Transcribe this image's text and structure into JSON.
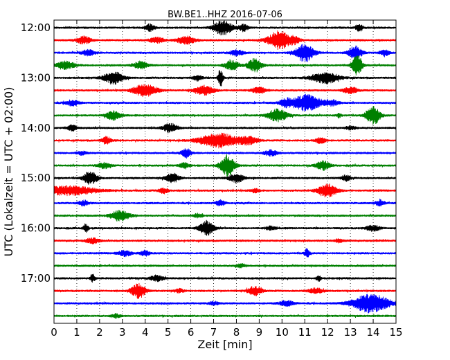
{
  "chart_data": {
    "type": "line",
    "title": "BW.BE1..HHZ 2016-07-06",
    "xlabel": "Zeit  [min]",
    "ylabel": "UTC (Lokalzeit = UTC + 02:00)",
    "xlim": [
      0,
      15
    ],
    "xticks": [
      "0",
      "1",
      "2",
      "3",
      "4",
      "5",
      "6",
      "7",
      "8",
      "9",
      "10",
      "11",
      "12",
      "13",
      "14",
      "15"
    ],
    "y_tick_labels": [
      "12:00",
      "13:00",
      "14:00",
      "15:00",
      "16:00",
      "17:00"
    ],
    "grid": "vertical dotted",
    "series_colors": [
      "#000000",
      "#ff0000",
      "#0000ff",
      "#008000"
    ],
    "traces": [
      {
        "start": "12:00",
        "color": "#000000",
        "bursts": [
          [
            7.4,
            0.8,
            0.4
          ],
          [
            4.2,
            0.4,
            0.2
          ],
          [
            8.3,
            0.4,
            0.2
          ],
          [
            13.4,
            0.4,
            0.15
          ]
        ]
      },
      {
        "start": "12:15",
        "color": "#ff0000",
        "bursts": [
          [
            9.9,
            1.0,
            0.5
          ],
          [
            1.3,
            0.4,
            0.3
          ],
          [
            5.8,
            0.4,
            0.4
          ],
          [
            4.5,
            0.3,
            0.3
          ],
          [
            10.6,
            0.3,
            0.2
          ]
        ]
      },
      {
        "start": "12:30",
        "color": "#0000ff",
        "bursts": [
          [
            11.0,
            1.0,
            0.4
          ],
          [
            13.2,
            0.7,
            0.3
          ],
          [
            14.5,
            0.3,
            0.2
          ],
          [
            1.5,
            0.3,
            0.3
          ],
          [
            8.0,
            0.3,
            0.3
          ]
        ]
      },
      {
        "start": "12:45",
        "color": "#008000",
        "bursts": [
          [
            13.3,
            1.2,
            0.2
          ],
          [
            8.8,
            0.7,
            0.3
          ],
          [
            7.8,
            0.5,
            0.3
          ],
          [
            0.5,
            0.4,
            0.4
          ],
          [
            3.8,
            0.4,
            0.3
          ]
        ]
      },
      {
        "start": "13:00",
        "color": "#000000",
        "bursts": [
          [
            2.6,
            0.7,
            0.4
          ],
          [
            7.3,
            1.0,
            0.1
          ],
          [
            11.9,
            0.6,
            0.6
          ],
          [
            6.3,
            0.3,
            0.2
          ]
        ]
      },
      {
        "start": "13:15",
        "color": "#ff0000",
        "bursts": [
          [
            4.0,
            0.7,
            0.5
          ],
          [
            6.6,
            0.5,
            0.4
          ],
          [
            13.0,
            0.4,
            0.3
          ],
          [
            9.0,
            0.3,
            0.3
          ]
        ]
      },
      {
        "start": "13:30",
        "color": "#0000ff",
        "bursts": [
          [
            11.1,
            0.9,
            0.6
          ],
          [
            10.2,
            0.4,
            0.3
          ],
          [
            12.2,
            0.3,
            0.3
          ],
          [
            0.8,
            0.3,
            0.3
          ]
        ]
      },
      {
        "start": "13:45",
        "color": "#008000",
        "bursts": [
          [
            14.0,
            1.0,
            0.3
          ],
          [
            9.8,
            0.7,
            0.4
          ],
          [
            2.6,
            0.5,
            0.3
          ],
          [
            12.5,
            0.2,
            0.1
          ]
        ]
      },
      {
        "start": "14:00",
        "color": "#000000",
        "bursts": [
          [
            5.1,
            0.5,
            0.3
          ],
          [
            0.8,
            0.3,
            0.2
          ],
          [
            13.0,
            0.2,
            0.2
          ]
        ]
      },
      {
        "start": "14:15",
        "color": "#ff0000",
        "bursts": [
          [
            7.2,
            0.8,
            0.8
          ],
          [
            8.5,
            0.4,
            0.4
          ],
          [
            2.3,
            0.4,
            0.2
          ],
          [
            11.7,
            0.3,
            0.2
          ]
        ]
      },
      {
        "start": "14:30",
        "color": "#0000ff",
        "bursts": [
          [
            5.8,
            0.5,
            0.2
          ],
          [
            9.5,
            0.3,
            0.3
          ],
          [
            1.2,
            0.2,
            0.2
          ]
        ]
      },
      {
        "start": "14:45",
        "color": "#008000",
        "bursts": [
          [
            7.6,
            1.2,
            0.3
          ],
          [
            11.8,
            0.5,
            0.3
          ],
          [
            5.7,
            0.3,
            0.2
          ],
          [
            2.2,
            0.3,
            0.3
          ]
        ]
      },
      {
        "start": "15:00",
        "color": "#000000",
        "bursts": [
          [
            1.6,
            0.7,
            0.3
          ],
          [
            5.2,
            0.5,
            0.3
          ],
          [
            8.0,
            0.5,
            0.3
          ],
          [
            12.8,
            0.3,
            0.2
          ]
        ]
      },
      {
        "start": "15:15",
        "color": "#ff0000",
        "bursts": [
          [
            0.6,
            0.5,
            1.2
          ],
          [
            12.0,
            0.7,
            0.4
          ],
          [
            4.8,
            0.3,
            0.2
          ],
          [
            8.8,
            0.2,
            0.2
          ]
        ]
      },
      {
        "start": "15:30",
        "color": "#0000ff",
        "bursts": [
          [
            1.3,
            0.3,
            0.2
          ],
          [
            7.3,
            0.3,
            0.2
          ],
          [
            14.3,
            0.3,
            0.2
          ]
        ]
      },
      {
        "start": "15:45",
        "color": "#008000",
        "bursts": [
          [
            2.9,
            0.6,
            0.4
          ],
          [
            6.3,
            0.2,
            0.2
          ]
        ]
      },
      {
        "start": "16:00",
        "color": "#000000",
        "bursts": [
          [
            6.7,
            0.8,
            0.3
          ],
          [
            1.4,
            0.5,
            0.1
          ],
          [
            14.0,
            0.3,
            0.3
          ],
          [
            9.5,
            0.2,
            0.2
          ]
        ]
      },
      {
        "start": "16:15",
        "color": "#ff0000",
        "bursts": [
          [
            1.7,
            0.3,
            0.3
          ],
          [
            12.5,
            0.2,
            0.2
          ]
        ]
      },
      {
        "start": "16:30",
        "color": "#0000ff",
        "bursts": [
          [
            11.1,
            0.5,
            0.1
          ],
          [
            3.1,
            0.3,
            0.3
          ],
          [
            4.0,
            0.3,
            0.2
          ]
        ]
      },
      {
        "start": "16:45",
        "color": "#008000",
        "bursts": [
          [
            8.2,
            0.2,
            0.2
          ]
        ]
      },
      {
        "start": "17:00",
        "color": "#000000",
        "bursts": [
          [
            1.7,
            0.4,
            0.1
          ],
          [
            4.5,
            0.3,
            0.3
          ],
          [
            11.6,
            0.3,
            0.1
          ]
        ]
      },
      {
        "start": "17:15",
        "color": "#ff0000",
        "bursts": [
          [
            3.7,
            0.8,
            0.3
          ],
          [
            8.8,
            0.5,
            0.3
          ],
          [
            11.5,
            0.3,
            0.3
          ],
          [
            5.5,
            0.2,
            0.2
          ]
        ]
      },
      {
        "start": "17:30",
        "color": "#0000ff",
        "bursts": [
          [
            13.9,
            1.0,
            0.8
          ],
          [
            10.2,
            0.3,
            0.3
          ],
          [
            7.0,
            0.2,
            0.2
          ]
        ]
      },
      {
        "start": "17:45",
        "color": "#008000",
        "bursts": [
          [
            2.7,
            0.2,
            0.2
          ]
        ]
      }
    ]
  }
}
